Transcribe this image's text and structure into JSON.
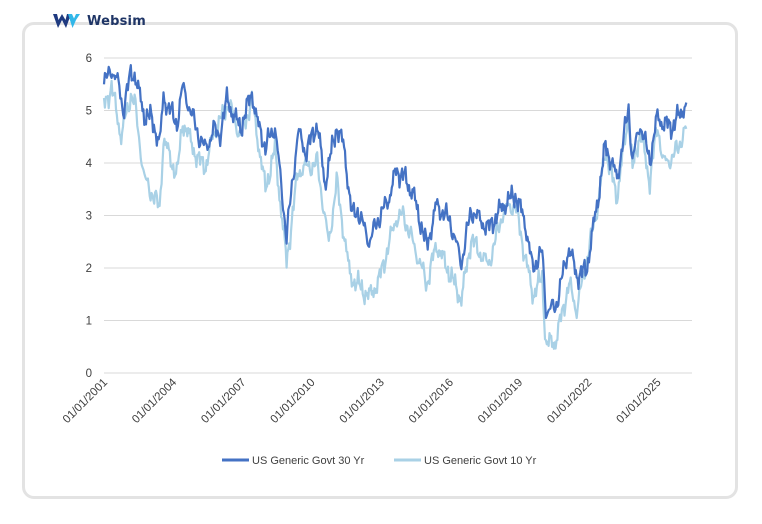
{
  "brand": {
    "name": "Websim",
    "color": "#1f3a80",
    "icon": "websim-logo-icon"
  },
  "chart_data": {
    "type": "line",
    "title": "",
    "xlabel": "",
    "ylabel": "",
    "ylim": [
      0,
      6
    ],
    "yticks": [
      "0",
      "1",
      "2",
      "3",
      "4",
      "5",
      "6"
    ],
    "xlim": [
      "2001-01-01",
      "2026-07-01"
    ],
    "xticks": [
      "01/01/2001",
      "01/01/2004",
      "01/01/2007",
      "01/01/2010",
      "01/01/2013",
      "01/01/2016",
      "01/01/2019",
      "01/01/2022",
      "01/01/2025"
    ],
    "grid": "horizontal",
    "legend_position": "bottom",
    "series": [
      {
        "name": "US Generic Govt 30 Yr",
        "color": "#4472c4",
        "points": [
          [
            "2001-01-01",
            5.5
          ],
          [
            "2001-05-01",
            5.8
          ],
          [
            "2001-09-01",
            5.45
          ],
          [
            "2001-11-01",
            5.0
          ],
          [
            "2002-03-01",
            5.7
          ],
          [
            "2002-05-01",
            5.7
          ],
          [
            "2002-10-01",
            4.9
          ],
          [
            "2003-02-01",
            4.85
          ],
          [
            "2003-06-01",
            4.35
          ],
          [
            "2003-08-01",
            5.25
          ],
          [
            "2004-03-01",
            4.75
          ],
          [
            "2004-06-01",
            5.45
          ],
          [
            "2005-02-01",
            4.55
          ],
          [
            "2005-06-01",
            4.25
          ],
          [
            "2005-10-01",
            4.65
          ],
          [
            "2006-01-01",
            4.5
          ],
          [
            "2006-05-01",
            5.2
          ],
          [
            "2006-12-01",
            4.65
          ],
          [
            "2007-06-01",
            5.35
          ],
          [
            "2007-09-01",
            4.75
          ],
          [
            "2008-01-01",
            4.3
          ],
          [
            "2008-06-01",
            4.7
          ],
          [
            "2008-12-01",
            2.6
          ],
          [
            "2009-06-01",
            4.6
          ],
          [
            "2009-10-01",
            4.2
          ],
          [
            "2010-04-01",
            4.75
          ],
          [
            "2010-08-01",
            3.6
          ],
          [
            "2011-02-01",
            4.7
          ],
          [
            "2011-06-01",
            4.3
          ],
          [
            "2011-10-01",
            3.0
          ],
          [
            "2012-01-01",
            3.1
          ],
          [
            "2012-07-01",
            2.5
          ],
          [
            "2012-12-01",
            2.95
          ],
          [
            "2013-05-01",
            3.3
          ],
          [
            "2013-09-01",
            3.85
          ],
          [
            "2014-01-01",
            3.75
          ],
          [
            "2014-06-01",
            3.4
          ],
          [
            "2015-01-01",
            2.4
          ],
          [
            "2015-06-01",
            3.2
          ],
          [
            "2016-01-01",
            2.9
          ],
          [
            "2016-07-01",
            2.1
          ],
          [
            "2016-12-01",
            3.1
          ],
          [
            "2017-09-01",
            2.75
          ],
          [
            "2018-05-01",
            3.2
          ],
          [
            "2018-11-01",
            3.4
          ],
          [
            "2019-04-01",
            2.9
          ],
          [
            "2019-08-01",
            2.0
          ],
          [
            "2020-01-01",
            2.3
          ],
          [
            "2020-03-01",
            1.2
          ],
          [
            "2020-08-01",
            1.25
          ],
          [
            "2021-03-01",
            2.4
          ],
          [
            "2021-07-01",
            1.85
          ],
          [
            "2021-12-01",
            1.95
          ],
          [
            "2022-06-01",
            3.3
          ],
          [
            "2022-10-01",
            4.35
          ],
          [
            "2023-04-01",
            3.7
          ],
          [
            "2023-10-01",
            5.05
          ],
          [
            "2023-12-01",
            4.05
          ],
          [
            "2024-04-01",
            4.75
          ],
          [
            "2024-09-01",
            4.05
          ],
          [
            "2025-01-01",
            4.9
          ],
          [
            "2025-04-01",
            4.75
          ],
          [
            "2025-09-01",
            4.7
          ],
          [
            "2026-04-01",
            5.15
          ]
        ]
      },
      {
        "name": "US Generic Govt 10 Yr",
        "color": "#a9d1e6",
        "points": [
          [
            "2001-01-01",
            5.1
          ],
          [
            "2001-05-01",
            5.45
          ],
          [
            "2001-10-01",
            4.5
          ],
          [
            "2002-03-01",
            5.3
          ],
          [
            "2002-05-01",
            5.15
          ],
          [
            "2002-10-01",
            3.7
          ],
          [
            "2003-06-01",
            3.15
          ],
          [
            "2003-08-01",
            4.45
          ],
          [
            "2004-03-01",
            3.75
          ],
          [
            "2004-06-01",
            4.8
          ],
          [
            "2005-02-01",
            4.05
          ],
          [
            "2005-06-01",
            3.95
          ],
          [
            "2005-10-01",
            4.55
          ],
          [
            "2006-06-01",
            5.15
          ],
          [
            "2006-12-01",
            4.5
          ],
          [
            "2007-06-01",
            5.2
          ],
          [
            "2008-01-01",
            3.5
          ],
          [
            "2008-06-01",
            4.25
          ],
          [
            "2008-12-01",
            2.1
          ],
          [
            "2009-06-01",
            3.85
          ],
          [
            "2010-04-01",
            4.0
          ],
          [
            "2010-10-01",
            2.45
          ],
          [
            "2011-02-01",
            3.65
          ],
          [
            "2011-09-01",
            1.85
          ],
          [
            "2012-07-01",
            1.45
          ],
          [
            "2012-12-01",
            1.75
          ],
          [
            "2013-09-01",
            2.95
          ],
          [
            "2014-01-01",
            3.0
          ],
          [
            "2015-01-01",
            1.7
          ],
          [
            "2015-06-01",
            2.45
          ],
          [
            "2016-07-01",
            1.4
          ],
          [
            "2016-12-01",
            2.55
          ],
          [
            "2017-09-01",
            2.05
          ],
          [
            "2018-05-01",
            3.1
          ],
          [
            "2018-11-01",
            3.2
          ],
          [
            "2019-08-01",
            1.5
          ],
          [
            "2020-01-01",
            1.8
          ],
          [
            "2020-03-01",
            0.55
          ],
          [
            "2020-08-01",
            0.6
          ],
          [
            "2021-03-01",
            1.7
          ],
          [
            "2021-07-01",
            1.2
          ],
          [
            "2022-06-01",
            3.2
          ],
          [
            "2022-10-01",
            4.25
          ],
          [
            "2023-04-01",
            3.35
          ],
          [
            "2023-10-01",
            4.95
          ],
          [
            "2023-12-01",
            3.85
          ],
          [
            "2024-04-01",
            4.6
          ],
          [
            "2024-09-01",
            3.65
          ],
          [
            "2025-01-01",
            4.75
          ],
          [
            "2025-04-01",
            4.0
          ],
          [
            "2025-09-01",
            4.1
          ],
          [
            "2026-04-01",
            4.65
          ]
        ]
      }
    ]
  }
}
